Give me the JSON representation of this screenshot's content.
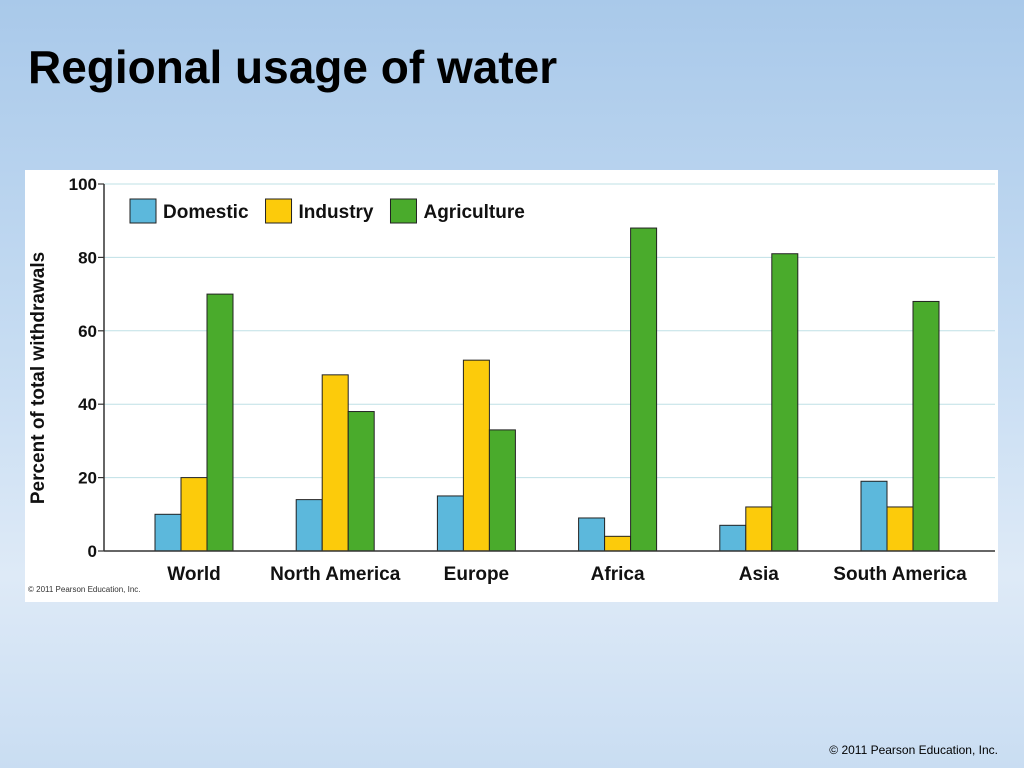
{
  "slide": {
    "title": "Regional usage of water",
    "footer": "© 2011 Pearson Education, Inc."
  },
  "chart_credit": "© 2011 Pearson Education, Inc.",
  "chart_data": {
    "type": "bar",
    "title": "",
    "xlabel": "",
    "ylabel": "Percent of total withdrawals",
    "ylim": [
      0,
      100
    ],
    "yticks": [
      0,
      20,
      40,
      60,
      80,
      100
    ],
    "grid": true,
    "legend_position": "top-left",
    "categories": [
      "World",
      "North America",
      "Europe",
      "Africa",
      "Asia",
      "South America"
    ],
    "series": [
      {
        "name": "Domestic",
        "color": "#5cb8dc",
        "values": [
          10,
          14,
          15,
          9,
          7,
          19
        ]
      },
      {
        "name": "Industry",
        "color": "#fccb0b",
        "values": [
          20,
          48,
          52,
          4,
          12,
          12
        ]
      },
      {
        "name": "Agriculture",
        "color": "#4aab2c",
        "values": [
          70,
          38,
          33,
          88,
          81,
          68
        ]
      }
    ]
  }
}
